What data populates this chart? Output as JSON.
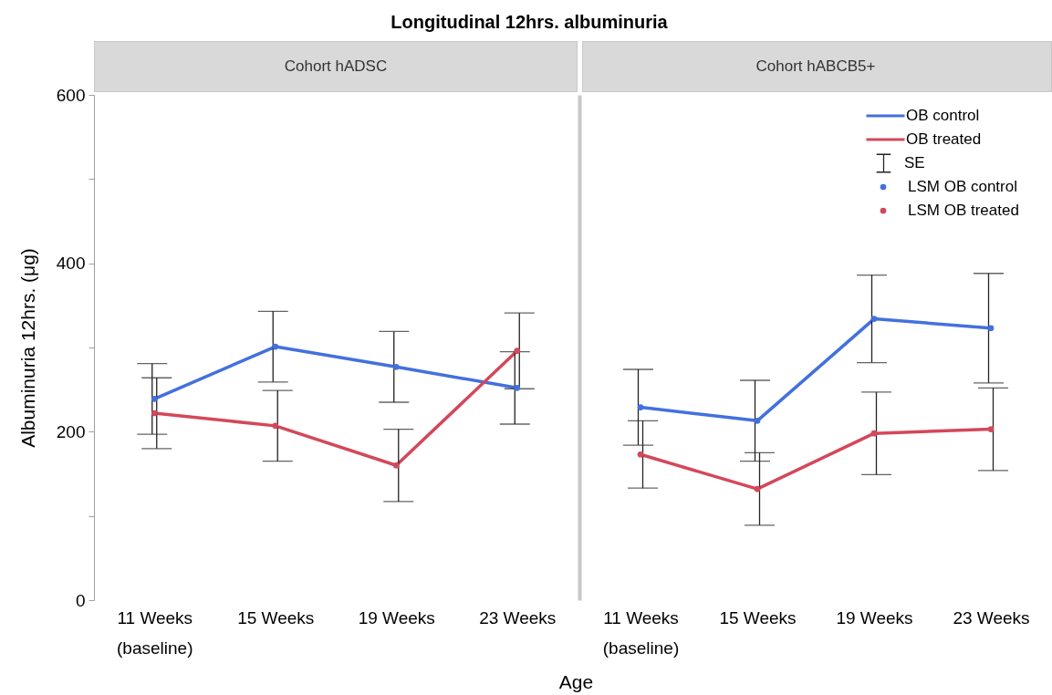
{
  "chart_data": [
    {
      "type": "line",
      "title": "Longitudinal 12hrs. albuminuria",
      "subtitle": "Cohort hADSC",
      "xlabel": "Age",
      "ylabel": "Albuminuria 12hrs. (μg)",
      "categories": [
        "11 Weeks (baseline)",
        "15 Weeks",
        "19 Weeks",
        "23 Weeks"
      ],
      "series": [
        {
          "color": "#4370df",
          "values": [
            239,
            301,
            277,
            252
          ]
        },
        {
          "color": "#d3485a",
          "values": [
            222,
            207,
            160,
            296
          ]
        },
        {
          "type": "scatter",
          "marker": "circle",
          "color": "#4370df",
          "values": [
            239,
            301,
            277,
            252
          ],
          "errors": [
            42,
            42,
            42,
            43
          ]
        },
        {
          "type": "scatter",
          "marker": "circle",
          "color": "#d3485a",
          "values": [
            222,
            207,
            160,
            296
          ],
          "errors": [
            42,
            42,
            43,
            45
          ]
        }
      ],
      "ylim": [
        0,
        600
      ],
      "yticks": [
        0,
        {
          "value": 100,
          "label": null
        },
        200,
        {
          "value": 300,
          "label": null
        },
        400,
        {
          "value": 500,
          "label": null
        },
        600
      ],
      "legend": false
    },
    {
      "type": "line",
      "subtitle": "Cohort hABCB5+",
      "categories": [
        "11 Weeks (baseline)",
        "15 Weeks",
        "19 Weeks",
        "23 Weeks"
      ],
      "series": [
        {
          "name": "OB control",
          "color": "#4370df",
          "values": [
            229,
            213,
            334,
            323
          ]
        },
        {
          "name": "OB treated",
          "color": "#d3485a",
          "values": [
            173,
            132,
            198,
            203
          ]
        },
        {
          "name": "LSM OB control",
          "type": "scatter",
          "marker": "circle",
          "color": "#4370df",
          "values": [
            229,
            213,
            334,
            323
          ],
          "errors": [
            45,
            48,
            52,
            65
          ]
        },
        {
          "name": "LSM OB treated",
          "type": "scatter",
          "marker": "circle",
          "color": "#d3485a",
          "values": [
            173,
            132,
            198,
            203
          ],
          "errors": [
            40,
            43,
            49,
            49
          ]
        }
      ],
      "ylim": [
        0,
        600
      ],
      "yticks": [
        0,
        200,
        400,
        600
      ],
      "tick_labels": "x",
      "legend": "top right",
      "annotations": [
        "SE"
      ]
    }
  ]
}
